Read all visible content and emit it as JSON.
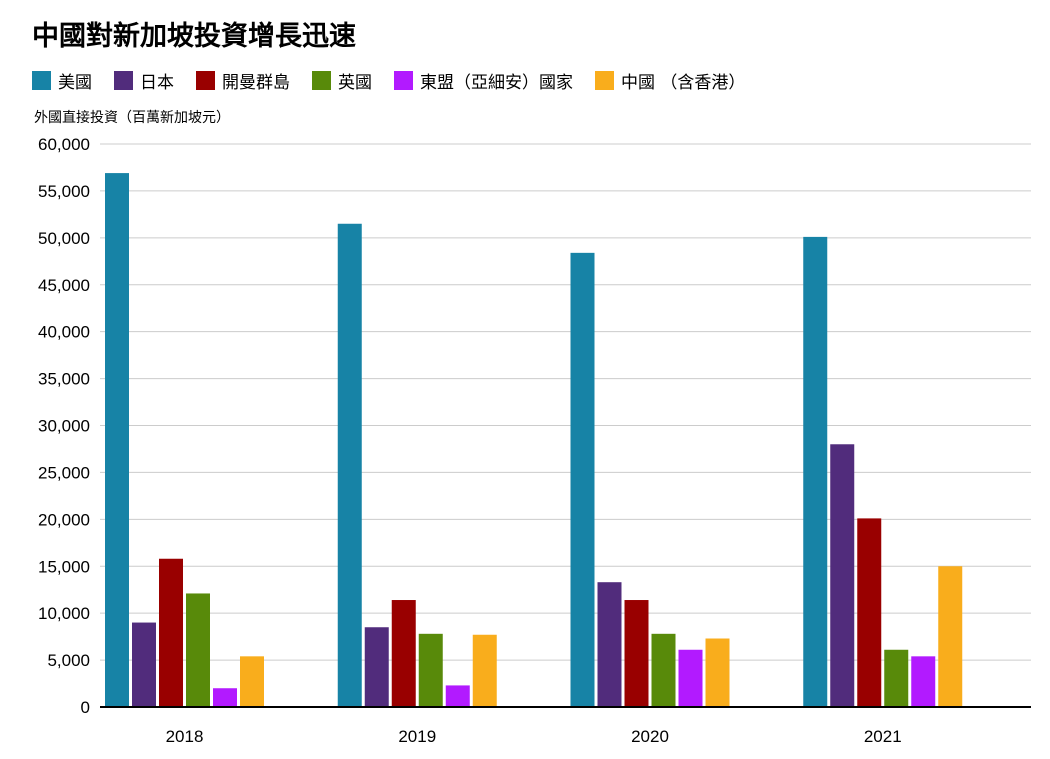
{
  "title": "中國對新加坡投資增長迅速",
  "chart_data": {
    "type": "bar",
    "title": "中國對新加坡投資增長迅速",
    "ylabel": "外國直接投資（百萬新加坡元）",
    "xlabel": "",
    "categories": [
      "2018",
      "2019",
      "2020",
      "2021"
    ],
    "ylim": [
      0,
      60000
    ],
    "yticks": [
      0,
      5000,
      10000,
      15000,
      20000,
      25000,
      30000,
      35000,
      40000,
      45000,
      50000,
      55000,
      60000
    ],
    "ytick_labels": [
      "0",
      "5,000",
      "10,000",
      "15,000",
      "20,000",
      "25,000",
      "30,000",
      "35,000",
      "40,000",
      "45,000",
      "50,000",
      "55,000",
      "60,000"
    ],
    "grid": true,
    "legend_position": "top",
    "series": [
      {
        "name": "美國",
        "color": "#1783a6",
        "values": [
          56900,
          51500,
          48400,
          50100
        ]
      },
      {
        "name": "日本",
        "color": "#512c7c",
        "values": [
          9000,
          8500,
          13300,
          28000
        ]
      },
      {
        "name": "開曼群島",
        "color": "#990000",
        "values": [
          15800,
          11400,
          11400,
          20100
        ]
      },
      {
        "name": "英國",
        "color": "#588a0a",
        "values": [
          12100,
          7800,
          7800,
          6100
        ]
      },
      {
        "name": "東盟（亞細安）國家",
        "color": "#b21aff",
        "values": [
          2000,
          2300,
          6100,
          5400
        ]
      },
      {
        "name": "中國 （含香港）",
        "color": "#f9ad1c",
        "values": [
          5400,
          7700,
          7300,
          15000
        ]
      }
    ]
  }
}
